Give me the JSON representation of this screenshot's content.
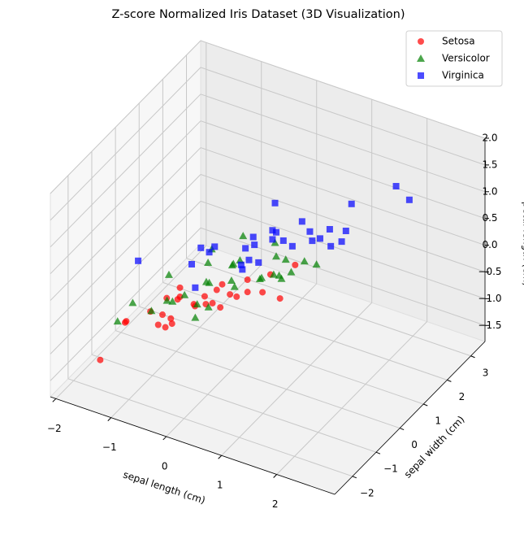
{
  "chart_data": {
    "type": "scatter3d",
    "title": "Z-score Normalized Iris Dataset (3D Visualization)",
    "x_label": "sepal length (cm)",
    "y_label": "sepal width (cm)",
    "z_label": "petal length (cm)",
    "xlim": [
      -2.1,
      3.05
    ],
    "ylim": [
      -2.75,
      3.6
    ],
    "zlim": [
      -1.8,
      2.0
    ],
    "xticks": [
      {
        "value": -2,
        "label": "−2"
      },
      {
        "value": -1,
        "label": "−1"
      },
      0,
      1,
      2
    ],
    "yticks": [
      {
        "value": -2,
        "label": "−2"
      },
      {
        "value": -1,
        "label": "−1"
      },
      0,
      1,
      2,
      3
    ],
    "zticks": [
      {
        "value": -1.5,
        "label": "−1.5"
      },
      {
        "value": -1.0,
        "label": "−1.0"
      },
      {
        "value": -0.5,
        "label": "−0.5"
      },
      {
        "value": 0.0,
        "label": "0.0"
      },
      {
        "value": 0.5,
        "label": "0.5"
      },
      {
        "value": 1.0,
        "label": "1.0"
      },
      {
        "value": 1.5,
        "label": "1.5"
      },
      {
        "value": 2.0,
        "label": "2.0"
      }
    ],
    "grid": true,
    "legend": "upper right",
    "series": [
      {
        "name": "Setosa",
        "color": "#ff0000",
        "marker": "circle",
        "x": [
          -0.9,
          -1.14,
          -1.39,
          -1.51,
          -1.02,
          -0.54,
          -1.51,
          -1.02,
          -1.75,
          -1.14,
          -0.54,
          -1.27,
          -1.27,
          -1.87,
          -0.05,
          -0.17,
          -0.54,
          -0.17,
          -0.9,
          -0.54,
          -0.9,
          -1.51,
          -0.9,
          -1.27,
          -1.02,
          -0.78,
          -1.63,
          -0.42,
          -0.66
        ],
        "y": [
          1.02,
          -0.13,
          0.33,
          0.1,
          1.25,
          1.94,
          0.79,
          0.79,
          -0.36,
          0.1,
          1.48,
          0.79,
          -0.13,
          -0.13,
          2.17,
          3.09,
          1.94,
          1.71,
          1.71,
          0.79,
          1.48,
          1.25,
          0.56,
          0.79,
          -0.13,
          1.02,
          -1.74,
          2.63,
          1.48
        ],
        "z": [
          -1.34,
          -1.34,
          -1.4,
          -1.28,
          -1.34,
          -1.17,
          -1.34,
          -1.28,
          -1.34,
          -1.28,
          -1.28,
          -1.23,
          -1.34,
          -1.51,
          -1.45,
          -1.28,
          -1.4,
          -1.17,
          -1.28,
          -1.17,
          -1.28,
          -1.57,
          -1.17,
          -1.06,
          -1.23,
          -1.28,
          -1.4,
          -1.34,
          -1.28
        ]
      },
      {
        "name": "Versicolor",
        "color": "#008000",
        "marker": "triangle",
        "x": [
          1.4,
          0.67,
          1.28,
          -0.42,
          0.8,
          -0.17,
          0.55,
          -1.14,
          0.92,
          -0.78,
          -1.02,
          0.07,
          0.19,
          0.31,
          -0.3,
          1.04,
          -0.3,
          -0.05,
          0.43,
          -0.3,
          0.07,
          0.31,
          0.55,
          0.67,
          0.92,
          1.16,
          1.04,
          0.19,
          -0.17,
          -0.42,
          -0.9
        ],
        "y": [
          0.33,
          0.33,
          0.1,
          -1.74,
          -0.59,
          -0.59,
          0.56,
          -1.51,
          -0.36,
          -0.82,
          -2.43,
          -0.13,
          -1.97,
          -0.36,
          -0.36,
          0.1,
          -0.13,
          -0.82,
          -1.97,
          -1.28,
          0.33,
          -0.59,
          -1.28,
          -0.36,
          -0.13,
          -0.59,
          -0.13,
          -0.36,
          -1.05,
          -1.51,
          -1.28
        ],
        "z": [
          0.53,
          0.42,
          0.65,
          0.14,
          0.48,
          0.42,
          0.53,
          -0.26,
          0.48,
          0.08,
          -0.15,
          0.25,
          0.14,
          0.53,
          -0.09,
          0.36,
          0.42,
          0.19,
          0.42,
          0.08,
          0.59,
          0.14,
          0.65,
          0.31,
          0.36,
          0.59,
          0.7,
          0.42,
          -0.15,
          0.02,
          -0.43
        ]
      },
      {
        "name": "Virginica",
        "color": "#0000ff",
        "marker": "square",
        "x": [
          0.55,
          -0.05,
          1.52,
          0.55,
          0.8,
          2.13,
          -1.14,
          1.76,
          1.04,
          1.64,
          0.8,
          0.67,
          1.16,
          -0.17,
          -0.05,
          0.67,
          0.8,
          2.25,
          2.25,
          0.19,
          1.28,
          -0.3,
          2.25,
          0.55,
          1.04,
          1.64,
          0.43,
          0.31,
          0.67,
          2.49
        ],
        "y": [
          0.56,
          -0.82,
          -0.13,
          -0.36,
          -0.13,
          -0.13,
          -1.28,
          -0.36,
          -1.28,
          1.25,
          0.33,
          -0.82,
          -0.13,
          -1.28,
          -0.59,
          0.33,
          -0.13,
          1.71,
          -1.05,
          -1.97,
          0.33,
          -0.59,
          -0.59,
          -0.82,
          0.56,
          0.33,
          -0.59,
          -0.13,
          -0.59,
          1.71
        ],
        "z": [
          1.27,
          0.76,
          1.22,
          1.05,
          1.16,
          1.62,
          0.42,
          1.45,
          1.16,
          1.33,
          0.76,
          0.87,
          0.99,
          0.7,
          0.76,
          0.87,
          0.99,
          1.67,
          1.79,
          0.7,
          1.1,
          0.65,
          1.67,
          0.65,
          1.1,
          1.27,
          0.59,
          0.65,
          1.05,
          1.5
        ]
      }
    ]
  }
}
